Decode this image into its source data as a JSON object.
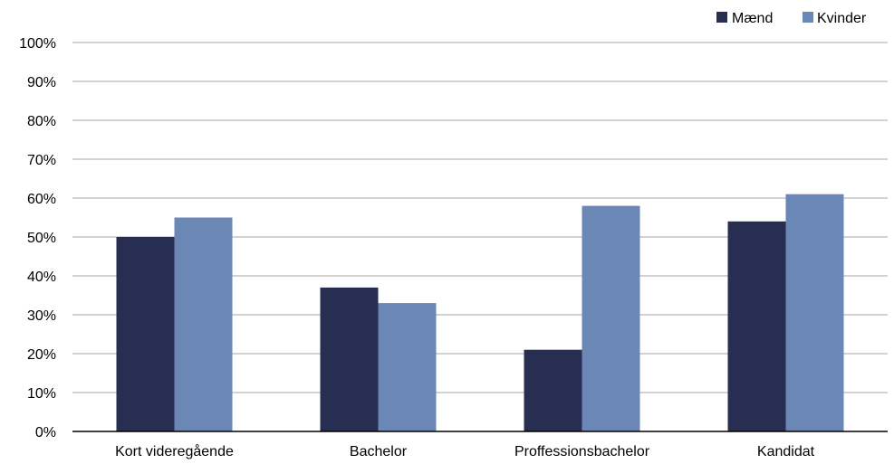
{
  "chart_data": {
    "type": "bar",
    "categories": [
      "Kort videregående",
      "Bachelor",
      "Proffessionsbachelor",
      "Kandidat"
    ],
    "series": [
      {
        "name": "Mænd",
        "color": "#282e52",
        "values": [
          50,
          37,
          21,
          54
        ]
      },
      {
        "name": "Kvinder",
        "color": "#6b87b6",
        "values": [
          55,
          33,
          58,
          61
        ]
      }
    ],
    "y_ticks": [
      "0%",
      "10%",
      "20%",
      "30%",
      "40%",
      "50%",
      "60%",
      "70%",
      "80%",
      "90%",
      "100%"
    ],
    "ylim": [
      0,
      100
    ],
    "grid": true,
    "legend_position": "top-right"
  }
}
